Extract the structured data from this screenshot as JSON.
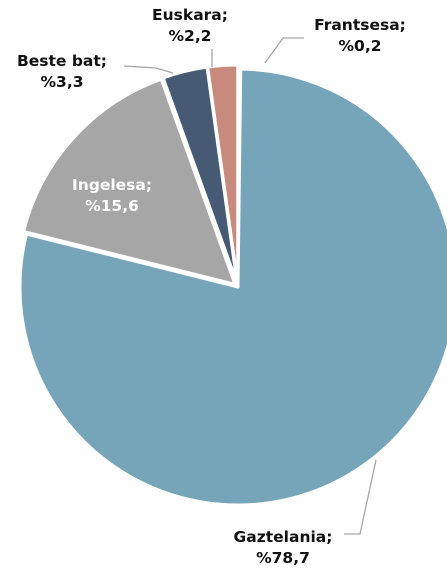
{
  "chart_data": {
    "type": "pie",
    "title": "",
    "slices": [
      {
        "label": "Frantsesa",
        "value": 0.2,
        "value_text": "%0,2",
        "color": "#e4e1d6"
      },
      {
        "label": "Gaztelania",
        "value": 78.7,
        "value_text": "%78,7",
        "color": "#76a4b9"
      },
      {
        "label": "Ingelesa",
        "value": 15.6,
        "value_text": "%15,6",
        "color": "#a6a6a6"
      },
      {
        "label": "Beste bat",
        "value": 3.3,
        "value_text": "%3,3",
        "color": "#465a73"
      },
      {
        "label": "Euskara",
        "value": 2.2,
        "value_text": "%2,2",
        "color": "#c88a7d"
      }
    ],
    "start_angle_deg": 0,
    "direction": "clockwise",
    "border_color": "#ffffff",
    "label_separator": ";",
    "legend": "none"
  }
}
